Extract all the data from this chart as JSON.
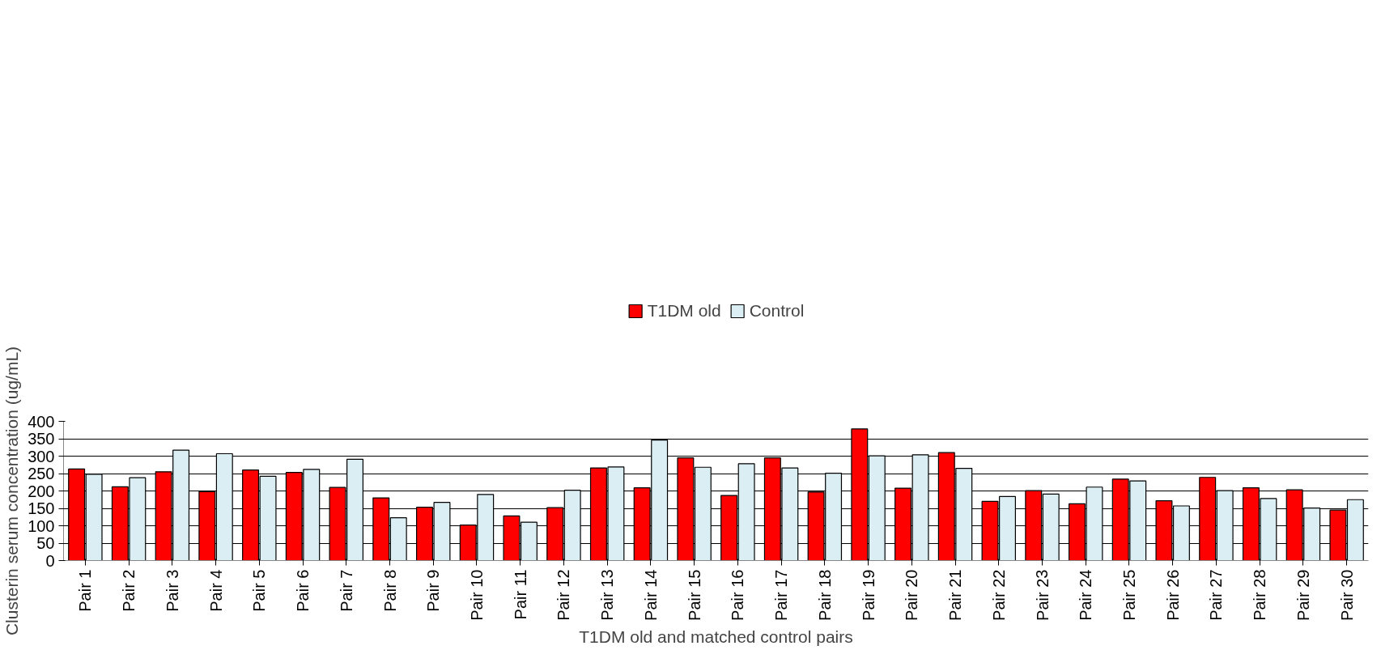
{
  "chart_data": {
    "type": "bar",
    "xlabel": "T1DM old and matched control pairs",
    "ylabel": "Clusterin serum concentration (ug/mL)",
    "categories": [
      "Pair 1",
      "Pair 2",
      "Pair 3",
      "Pair 4",
      "Pair 5",
      "Pair 6",
      "Pair 7",
      "Pair 8",
      "Pair 9",
      "Pair 10",
      "Pair 11",
      "Pair 12",
      "Pair 13",
      "Pair 14",
      "Pair 15",
      "Pair 16",
      "Pair 17",
      "Pair 18",
      "Pair 19",
      "Pair 20",
      "Pair 21",
      "Pair 22",
      "Pair 23",
      "Pair 24",
      "Pair 25",
      "Pair 26",
      "Pair 27",
      "Pair 28",
      "Pair 29",
      "Pair 30"
    ],
    "series": [
      {
        "name": "T1DM old",
        "color": "#ff0000",
        "values": [
          263,
          212,
          255,
          198,
          260,
          253,
          210,
          180,
          153,
          102,
          128,
          152,
          266,
          209,
          295,
          187,
          295,
          197,
          378,
          208,
          310,
          170,
          201,
          163,
          234,
          172,
          239,
          209,
          203,
          145
        ]
      },
      {
        "name": "Control",
        "color": "#dbeef4",
        "values": [
          248,
          238,
          317,
          307,
          242,
          262,
          291,
          123,
          167,
          190,
          110,
          202,
          269,
          346,
          268,
          278,
          266,
          251,
          301,
          304,
          265,
          184,
          191,
          211,
          229,
          157,
          201,
          178,
          151,
          175
        ]
      }
    ],
    "ylim": [
      0,
      400
    ],
    "yticks": [
      0,
      50,
      100,
      150,
      200,
      250,
      300,
      350,
      400
    ],
    "grid": "y",
    "legend": "top"
  }
}
